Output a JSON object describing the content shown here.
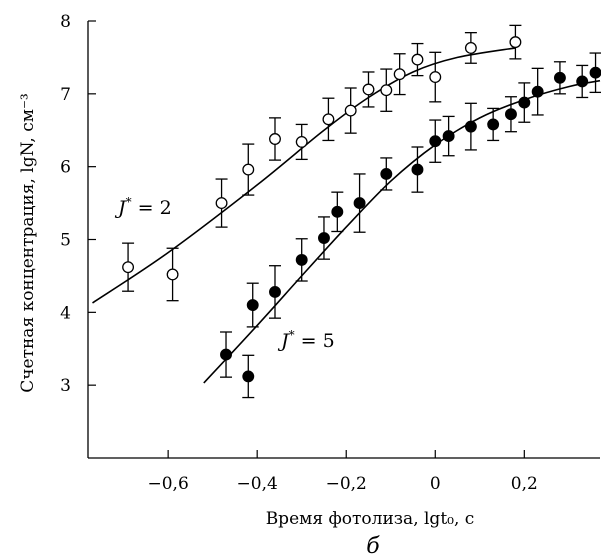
{
  "chart_data": {
    "type": "scatter",
    "title": "",
    "xlabel": "Время фотолиза, lgt₀, с",
    "ylabel": "Счетная концентрация, lgN, см⁻³",
    "xlim": [
      -0.78,
      0.37
    ],
    "ylim": [
      2.0,
      8.0
    ],
    "x_ticks": [
      -0.6,
      -0.4,
      -0.2,
      0,
      0.2
    ],
    "x_tick_labels": [
      "−0,6",
      "−0,4",
      "−0,2",
      "0",
      "0,2"
    ],
    "y_ticks": [
      3,
      4,
      5,
      6,
      7,
      8
    ],
    "y_tick_labels": [
      "3",
      "4",
      "5",
      "6",
      "7",
      "8"
    ],
    "grid": false,
    "panel_label": "б",
    "series": [
      {
        "name": "J* = 2",
        "label_parts": {
          "symbol": "J",
          "sup": "*",
          "rest": " = 2"
        },
        "marker": "open-circle",
        "color": "#000000",
        "points": [
          {
            "x": -0.69,
            "y": 4.62,
            "err": 0.33
          },
          {
            "x": -0.59,
            "y": 4.52,
            "err": 0.36
          },
          {
            "x": -0.48,
            "y": 5.5,
            "err": 0.33
          },
          {
            "x": -0.42,
            "y": 5.96,
            "err": 0.35
          },
          {
            "x": -0.36,
            "y": 6.38,
            "err": 0.29
          },
          {
            "x": -0.3,
            "y": 6.34,
            "err": 0.24
          },
          {
            "x": -0.24,
            "y": 6.65,
            "err": 0.29
          },
          {
            "x": -0.19,
            "y": 6.77,
            "err": 0.31
          },
          {
            "x": -0.15,
            "y": 7.06,
            "err": 0.24
          },
          {
            "x": -0.11,
            "y": 7.05,
            "err": 0.29
          },
          {
            "x": -0.08,
            "y": 7.27,
            "err": 0.28
          },
          {
            "x": -0.04,
            "y": 7.47,
            "err": 0.22
          },
          {
            "x": 0.0,
            "y": 7.23,
            "err": 0.34
          },
          {
            "x": 0.08,
            "y": 7.63,
            "err": 0.21
          },
          {
            "x": 0.18,
            "y": 7.71,
            "err": 0.23
          }
        ],
        "fit": [
          [
            -0.77,
            4.13
          ],
          [
            -0.6,
            4.82
          ],
          [
            -0.4,
            5.75
          ],
          [
            -0.25,
            6.5
          ],
          [
            -0.15,
            6.95
          ],
          [
            -0.05,
            7.3
          ],
          [
            0.05,
            7.5
          ],
          [
            0.18,
            7.63
          ]
        ]
      },
      {
        "name": "J* = 5",
        "label_parts": {
          "symbol": "J",
          "sup": "*",
          "rest": " = 5"
        },
        "marker": "filled-circle",
        "color": "#000000",
        "points": [
          {
            "x": -0.47,
            "y": 3.42,
            "err": 0.31
          },
          {
            "x": -0.42,
            "y": 3.12,
            "err": 0.29
          },
          {
            "x": -0.41,
            "y": 4.1,
            "err": 0.3
          },
          {
            "x": -0.36,
            "y": 4.28,
            "err": 0.36
          },
          {
            "x": -0.3,
            "y": 4.72,
            "err": 0.29
          },
          {
            "x": -0.25,
            "y": 5.02,
            "err": 0.29
          },
          {
            "x": -0.22,
            "y": 5.38,
            "err": 0.27
          },
          {
            "x": -0.17,
            "y": 5.5,
            "err": 0.4
          },
          {
            "x": -0.11,
            "y": 5.9,
            "err": 0.22
          },
          {
            "x": -0.04,
            "y": 5.96,
            "err": 0.31
          },
          {
            "x": 0.0,
            "y": 6.35,
            "err": 0.29
          },
          {
            "x": 0.03,
            "y": 6.42,
            "err": 0.27
          },
          {
            "x": 0.08,
            "y": 6.55,
            "err": 0.32
          },
          {
            "x": 0.13,
            "y": 6.58,
            "err": 0.22
          },
          {
            "x": 0.17,
            "y": 6.72,
            "err": 0.24
          },
          {
            "x": 0.2,
            "y": 6.88,
            "err": 0.27
          },
          {
            "x": 0.23,
            "y": 7.03,
            "err": 0.32
          },
          {
            "x": 0.28,
            "y": 7.22,
            "err": 0.22
          },
          {
            "x": 0.33,
            "y": 7.17,
            "err": 0.22
          },
          {
            "x": 0.36,
            "y": 7.29,
            "err": 0.27
          }
        ],
        "fit": [
          [
            -0.52,
            3.03
          ],
          [
            -0.4,
            3.82
          ],
          [
            -0.3,
            4.5
          ],
          [
            -0.2,
            5.17
          ],
          [
            -0.1,
            5.8
          ],
          [
            0.0,
            6.3
          ],
          [
            0.1,
            6.67
          ],
          [
            0.2,
            6.92
          ],
          [
            0.3,
            7.1
          ],
          [
            0.37,
            7.18
          ]
        ]
      }
    ]
  }
}
